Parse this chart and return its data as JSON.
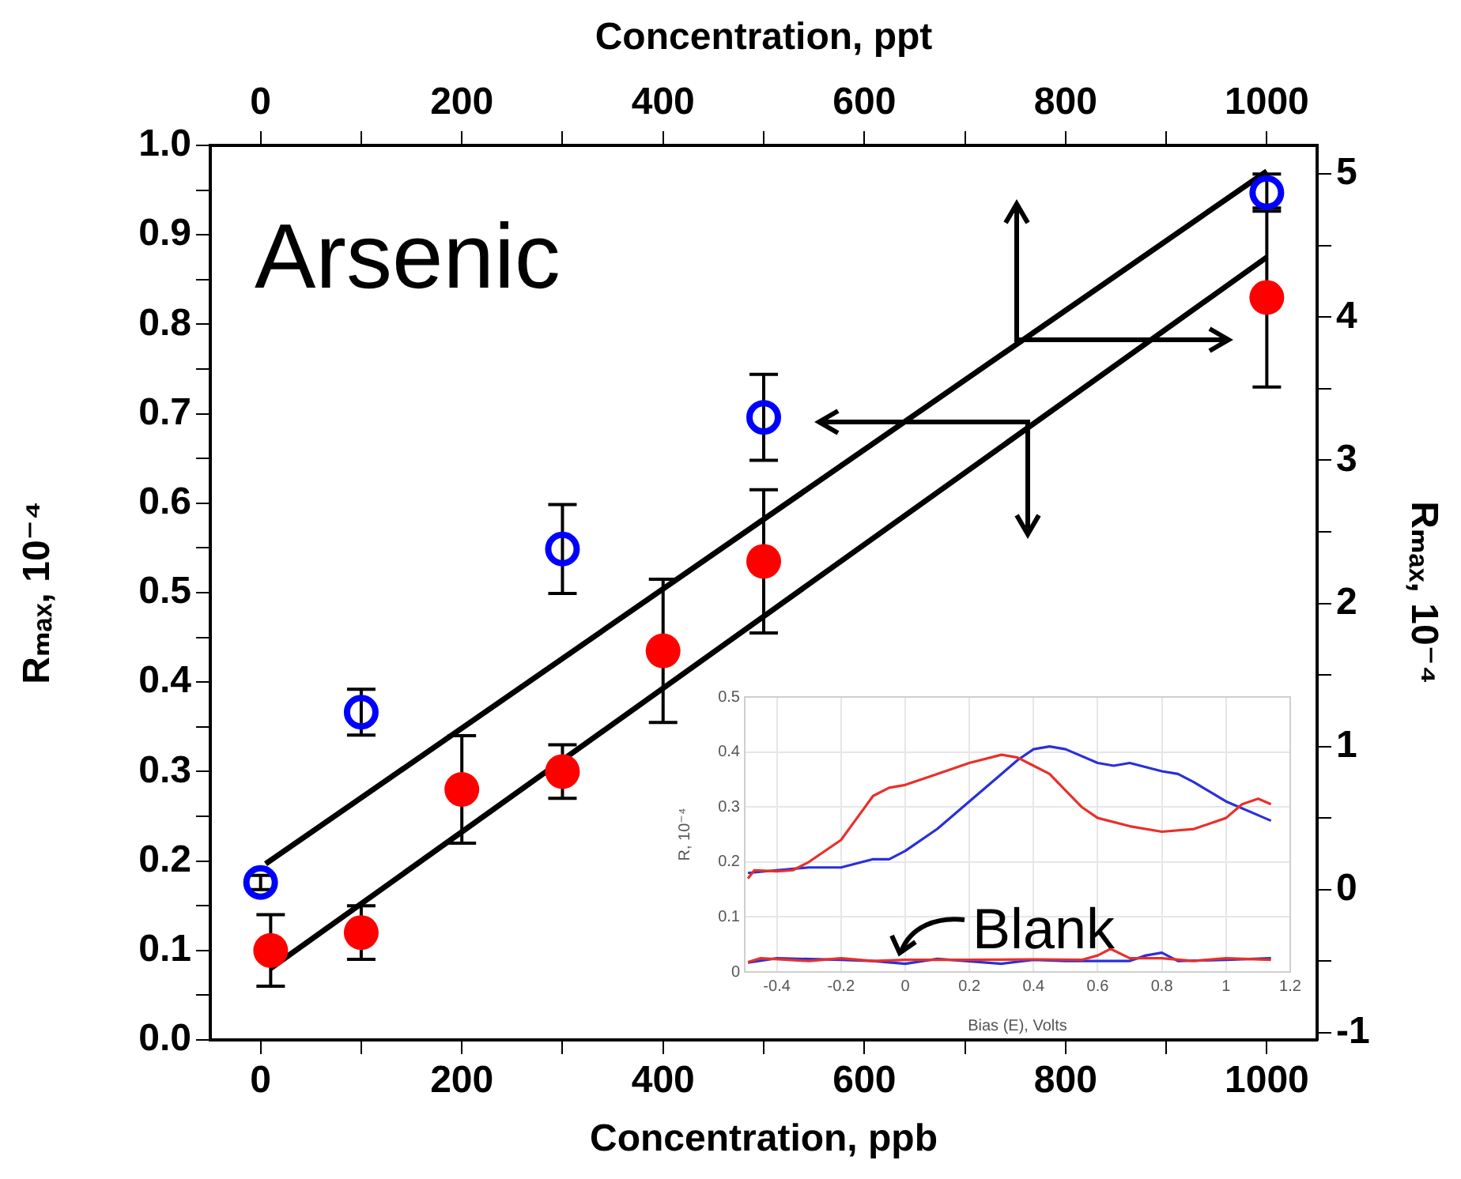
{
  "chart_data": [
    {
      "type": "scatter",
      "xlabel": "Concentration, ppb",
      "x2label": "Concentration, ppt",
      "ylabel": "Rₘₐₓ, 10⁻⁴",
      "y2label": "Rₘₐₓ, 10⁻⁴",
      "annotations": [
        "Arsenic"
      ],
      "marker": "circle",
      "xlim": [
        -50,
        1050
      ],
      "xticks": [
        0,
        {
          "value": 100,
          "label": null
        },
        200,
        {
          "value": 300,
          "label": null
        },
        400,
        {
          "value": 500,
          "label": null
        },
        600,
        {
          "value": 700,
          "label": null
        },
        800,
        {
          "value": 900,
          "label": null
        },
        1000
      ],
      "x2lim": [
        -50,
        1050
      ],
      "x2ticks": [
        0,
        {
          "value": 100,
          "label": null
        },
        200,
        {
          "value": 300,
          "label": null
        },
        400,
        {
          "value": 500,
          "label": null
        },
        600,
        {
          "value": 700,
          "label": null
        },
        800,
        {
          "value": 900,
          "label": null
        },
        1000
      ],
      "ylim": [
        0,
        1
      ],
      "yticks": [
        {
          "value": 0,
          "label": "0.0"
        },
        {
          "value": 0.05,
          "label": null
        },
        0.1,
        {
          "value": 0.15,
          "label": null
        },
        0.2,
        {
          "value": 0.25,
          "label": null
        },
        0.3,
        {
          "value": 0.35,
          "label": null
        },
        0.4,
        {
          "value": 0.45,
          "label": null
        },
        0.5,
        {
          "value": 0.55,
          "label": null
        },
        0.6,
        {
          "value": 0.65,
          "label": null
        },
        0.7,
        {
          "value": 0.75,
          "label": null
        },
        0.8,
        {
          "value": 0.85,
          "label": null
        },
        0.9,
        {
          "value": 0.95,
          "label": null
        },
        {
          "value": 1,
          "label": "1.0"
        }
      ],
      "y2lim": [
        -1.05,
        5.2
      ],
      "y2ticks": [
        -1,
        {
          "value": -0.5,
          "label": null
        },
        0,
        {
          "value": 0.5,
          "label": null
        },
        1,
        {
          "value": 1.5,
          "label": null
        },
        2,
        {
          "value": 2.5,
          "label": null
        },
        3,
        {
          "value": 3.5,
          "label": null
        },
        4,
        {
          "value": 4.5,
          "label": null
        },
        5
      ],
      "series": [
        {
          "color": "#ff0000",
          "x": [
            10,
            100,
            200,
            300,
            400,
            500,
            1000
          ],
          "values": [
            0.1,
            0.12,
            0.28,
            0.3,
            0.435,
            0.535,
            0.83
          ],
          "errors": [
            0.04,
            0.03,
            0.06,
            0.03,
            0.08,
            0.08,
            0.1
          ]
        },
        {
          "color": "#0000ff",
          "axis": "y2",
          "x": [
            0,
            100,
            300,
            500,
            1000
          ],
          "values": [
            0.05,
            1.24,
            2.38,
            3.3,
            4.87
          ],
          "errors": [
            0.05,
            0.16,
            0.31,
            0.3,
            0.13
          ]
        },
        {
          "type": "line",
          "marker": "none",
          "color": "#000000",
          "x": [
            10,
            1000
          ],
          "values": [
            0.08,
            0.875
          ]
        },
        {
          "type": "line",
          "marker": "none",
          "color": "#000000",
          "axis": "y2",
          "x": [
            5,
            1000
          ],
          "values": [
            0.18,
            5.02
          ]
        }
      ]
    },
    {
      "type": "line",
      "xlabel": "Bias (E), Volts",
      "ylabel": "R, 10⁻⁴",
      "annotations": [
        "Blank"
      ],
      "grid": true,
      "marker": "none",
      "xlim": [
        -0.5,
        1.2
      ],
      "xticks": [
        -0.4,
        -0.2,
        0,
        0.2,
        0.4,
        0.6,
        0.8,
        1,
        1.2
      ],
      "ylim": [
        0,
        0.5
      ],
      "yticks": [
        0,
        0.1,
        0.2,
        0.3,
        0.4,
        0.5
      ],
      "series": [
        {
          "color": "#e8302a",
          "x": [
            -0.49,
            -0.47,
            -0.4,
            -0.35,
            -0.3,
            -0.2,
            -0.15,
            -0.1,
            -0.05,
            0,
            0.1,
            0.2,
            0.3,
            0.35,
            0.4,
            0.45,
            0.5,
            0.55,
            0.6,
            0.7,
            0.8,
            0.9,
            1.0,
            1.05,
            1.1,
            1.14
          ],
          "values": [
            0.17,
            0.185,
            0.183,
            0.185,
            0.2,
            0.24,
            0.28,
            0.32,
            0.335,
            0.34,
            0.36,
            0.38,
            0.395,
            0.39,
            0.375,
            0.36,
            0.33,
            0.3,
            0.28,
            0.265,
            0.255,
            0.26,
            0.28,
            0.305,
            0.315,
            0.305
          ]
        },
        {
          "color": "#2a30d8",
          "x": [
            -0.49,
            -0.4,
            -0.3,
            -0.2,
            -0.1,
            -0.05,
            0,
            0.1,
            0.2,
            0.3,
            0.35,
            0.4,
            0.45,
            0.5,
            0.6,
            0.65,
            0.7,
            0.8,
            0.85,
            0.9,
            1.0,
            1.1,
            1.14
          ],
          "values": [
            0.18,
            0.185,
            0.19,
            0.19,
            0.205,
            0.205,
            0.22,
            0.26,
            0.31,
            0.36,
            0.385,
            0.405,
            0.41,
            0.405,
            0.38,
            0.375,
            0.38,
            0.365,
            0.36,
            0.345,
            0.31,
            0.285,
            0.275
          ]
        },
        {
          "color": "#e8302a",
          "x": [
            -0.49,
            -0.45,
            -0.3,
            -0.2,
            -0.1,
            0,
            0.2,
            0.4,
            0.55,
            0.6,
            0.64,
            0.7,
            0.8,
            0.9,
            1.0,
            1.14
          ],
          "values": [
            0.018,
            0.025,
            0.02,
            0.025,
            0.02,
            0.022,
            0.022,
            0.023,
            0.022,
            0.03,
            0.042,
            0.025,
            0.025,
            0.02,
            0.025,
            0.022
          ]
        },
        {
          "color": "#2a30d8",
          "x": [
            -0.49,
            -0.4,
            -0.2,
            -0.1,
            0,
            0.1,
            0.3,
            0.4,
            0.5,
            0.7,
            0.75,
            0.8,
            0.85,
            1.0,
            1.14
          ],
          "values": [
            0.017,
            0.025,
            0.022,
            0.02,
            0.015,
            0.024,
            0.015,
            0.022,
            0.02,
            0.02,
            0.03,
            0.035,
            0.02,
            0.022,
            0.025
          ]
        }
      ]
    }
  ]
}
